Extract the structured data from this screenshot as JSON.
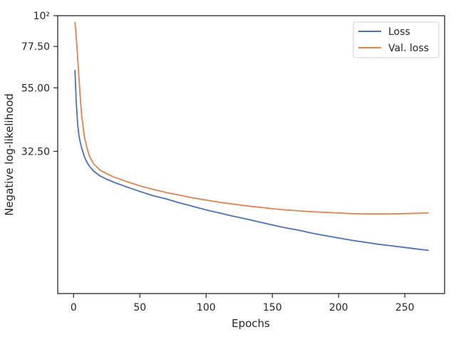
{
  "chart_data": {
    "type": "line",
    "xlabel": "Epochs",
    "ylabel": "Negative log-likelihood",
    "xlim": [
      -12,
      280
    ],
    "ylim": [
      10,
      100
    ],
    "yscale": "log",
    "xticks": [
      0,
      50,
      100,
      150,
      200,
      250
    ],
    "xtick_labels": [
      "0",
      "50",
      "100",
      "150",
      "200",
      "250"
    ],
    "yticks": [
      32.5,
      55,
      77.5,
      100
    ],
    "ytick_labels": [
      "32.50",
      "55.00",
      "77.50",
      "10²"
    ],
    "legend_position": "top-right",
    "grid": false,
    "series": [
      {
        "name": "Loss",
        "color": "#4c72b0",
        "x": [
          1,
          2,
          3,
          4,
          5,
          6,
          8,
          10,
          12,
          15,
          20,
          25,
          30,
          40,
          50,
          60,
          70,
          80,
          90,
          100,
          110,
          120,
          130,
          140,
          150,
          160,
          170,
          180,
          190,
          200,
          210,
          220,
          230,
          240,
          250,
          260,
          268
        ],
        "y": [
          63.8,
          49,
          41,
          37,
          35,
          33.5,
          31.2,
          29.7,
          28.7,
          27.6,
          26.5,
          25.8,
          25.2,
          24.2,
          23.3,
          22.5,
          21.9,
          21.2,
          20.6,
          20.0,
          19.5,
          19.0,
          18.55,
          18.1,
          17.65,
          17.25,
          16.9,
          16.5,
          16.15,
          15.85,
          15.55,
          15.3,
          15.05,
          14.85,
          14.65,
          14.45,
          14.3
        ]
      },
      {
        "name": "Val. loss",
        "color": "#dd8452",
        "x": [
          1,
          2,
          3,
          4,
          5,
          6,
          8,
          10,
          12,
          15,
          20,
          25,
          30,
          40,
          50,
          60,
          70,
          80,
          90,
          100,
          110,
          120,
          130,
          140,
          150,
          160,
          170,
          180,
          190,
          200,
          210,
          220,
          230,
          240,
          250,
          260,
          268
        ],
        "y": [
          95,
          84,
          71,
          60,
          51,
          44,
          37,
          33.5,
          31.2,
          29.3,
          27.8,
          27.0,
          26.3,
          25.3,
          24.4,
          23.7,
          23.1,
          22.6,
          22.1,
          21.7,
          21.3,
          21.0,
          20.7,
          20.45,
          20.2,
          20.0,
          19.85,
          19.7,
          19.6,
          19.5,
          19.4,
          19.35,
          19.35,
          19.35,
          19.4,
          19.45,
          19.5
        ]
      }
    ]
  }
}
